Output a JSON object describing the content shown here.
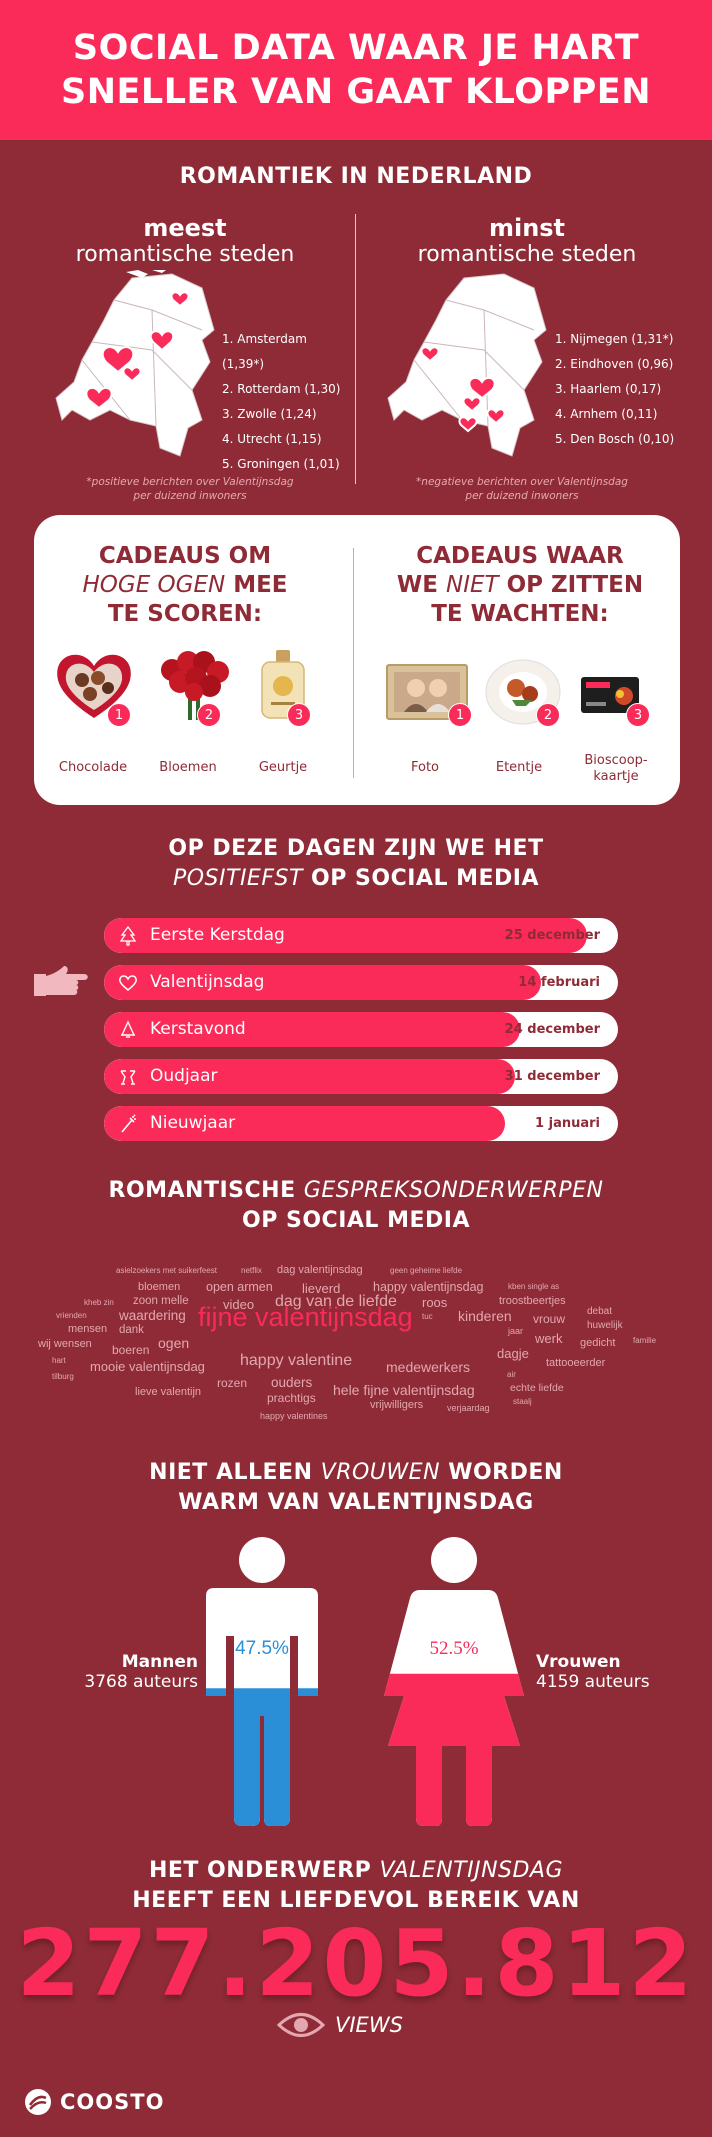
{
  "header": {
    "line1": "SOCIAL DATA WAAR JE HART",
    "line2": "SNELLER VAN GAAT KLOPPEN"
  },
  "romance": {
    "title": "ROMANTIEK IN NEDERLAND",
    "most": {
      "head_bold": "meest",
      "head_sub": "romantische steden",
      "items": [
        "1. Amsterdam (1,39*)",
        "2. Rotterdam (1,30)",
        "3. Zwolle (1,24)",
        "4. Utrecht (1,15)",
        "5. Groningen (1,01)"
      ],
      "footnote_1": "*positieve berichten over Valentijnsdag",
      "footnote_2": "per duizend inwoners"
    },
    "least": {
      "head_bold": "minst",
      "head_sub": "romantische steden",
      "items": [
        "1. Nijmegen (1,31*)",
        "2. Eindhoven (0,96)",
        "3. Haarlem (0,17)",
        "4. Arnhem (0,11)",
        "5. Den Bosch (0,10)"
      ],
      "footnote_1": "*negatieve berichten over Valentijnsdag",
      "footnote_2": "per duizend inwoners"
    },
    "map_heart_color": "#fa2b58"
  },
  "gifts": {
    "good": {
      "title_l1_a": "CADEAUS OM",
      "title_l2_i": "HOGE OGEN",
      "title_l2_b": " MEE",
      "title_l3": "TE SCOREN:",
      "items": [
        {
          "num": "1",
          "label": "Chocolade"
        },
        {
          "num": "2",
          "label": "Bloemen"
        },
        {
          "num": "3",
          "label": "Geurtje"
        }
      ]
    },
    "bad": {
      "title_l1": "CADEAUS WAAR",
      "title_l2_a": "WE ",
      "title_l2_i": "NIET",
      "title_l2_b": " OP ZITTEN",
      "title_l3": "TE WACHTEN:",
      "items": [
        {
          "num": "1",
          "label": "Foto"
        },
        {
          "num": "2",
          "label": "Etentje"
        },
        {
          "num": "3",
          "label_1": "Bioscoop-",
          "label_2": "kaartje"
        }
      ]
    }
  },
  "days": {
    "title_l1": "OP DEZE DAGEN ZIJN WE HET",
    "title_l2_i": "POSITIEFST",
    "title_l2_b": " OP SOCIAL MEDIA",
    "rows": [
      {
        "label": "Eerste Kerstdag",
        "date": "25 december",
        "fill": 0.94,
        "icon": "christmas-tree-icon"
      },
      {
        "label": "Valentijnsdag",
        "date": "14 februari",
        "fill": 0.85,
        "icon": "heart-icon"
      },
      {
        "label": "Kerstavond",
        "date": "24 december",
        "fill": 0.81,
        "icon": "bell-icon"
      },
      {
        "label": "Oudjaar",
        "date": "31 december",
        "fill": 0.8,
        "icon": "champagne-icon"
      },
      {
        "label": "Nieuwjaar",
        "date": "1 januari",
        "fill": 0.78,
        "icon": "firework-icon"
      }
    ]
  },
  "topics": {
    "title_l1_b": "ROMANTISCHE ",
    "title_l1_i": "GESPREKSONDERWERPEN",
    "title_l2": "OP SOCIAL MEDIA",
    "words": [
      "asielzoekers met suikerfeest",
      "netflix",
      "dag valentijnsdag",
      "geen geheime liefde",
      "bloemen",
      "open armen",
      "lieverd",
      "happy valentijnsdag",
      "kben single as",
      "kheb zin",
      "zoon melle",
      "video",
      "dag van de liefde",
      "roos",
      "troostbeertjes",
      "vrienden",
      "waardering",
      "fijne valentijnsdag",
      "tuc",
      "kinderen",
      "vrouw",
      "debat",
      "mensen",
      "dank",
      "jaar",
      "huwelijk",
      "wij wensen",
      "ogen",
      "werk",
      "gedicht",
      "familie",
      "boeren",
      "dagje",
      "hart",
      "mooie valentijnsdag",
      "happy valentine",
      "medewerkers",
      "tattooeerder",
      "tilburg",
      "air",
      "echte liefde",
      "rozen",
      "ouders",
      "hele fijne valentijnsdag",
      "lieve valentijn",
      "prachtigs",
      "vrijwilligers",
      "verjaardag",
      "staalj",
      "happy valentines"
    ]
  },
  "gender": {
    "title_l1_a": "NIET ALLEEN ",
    "title_l1_i": "VROUWEN",
    "title_l1_b": " WORDEN",
    "title_l2": "WARM VAN VALENTIJNSDAG",
    "men": {
      "label": "Mannen",
      "authors": "3768 auteurs",
      "pct": "47.5%",
      "value": 0.475,
      "color": "#2b8fd8"
    },
    "women": {
      "label": "Vrouwen",
      "authors": "4159 auteurs",
      "pct": "52.5%",
      "value": 0.525,
      "color": "#fa2b58"
    }
  },
  "reach": {
    "title_l1_a": "HET ONDERWERP ",
    "title_l1_i": "VALENTIJNSDAG",
    "title_l2": "HEEFT EEN LIEFDEVOL BEREIK VAN",
    "number": "277.205.812",
    "views": "VIEWS"
  },
  "brand": {
    "name": "COOSTO"
  }
}
